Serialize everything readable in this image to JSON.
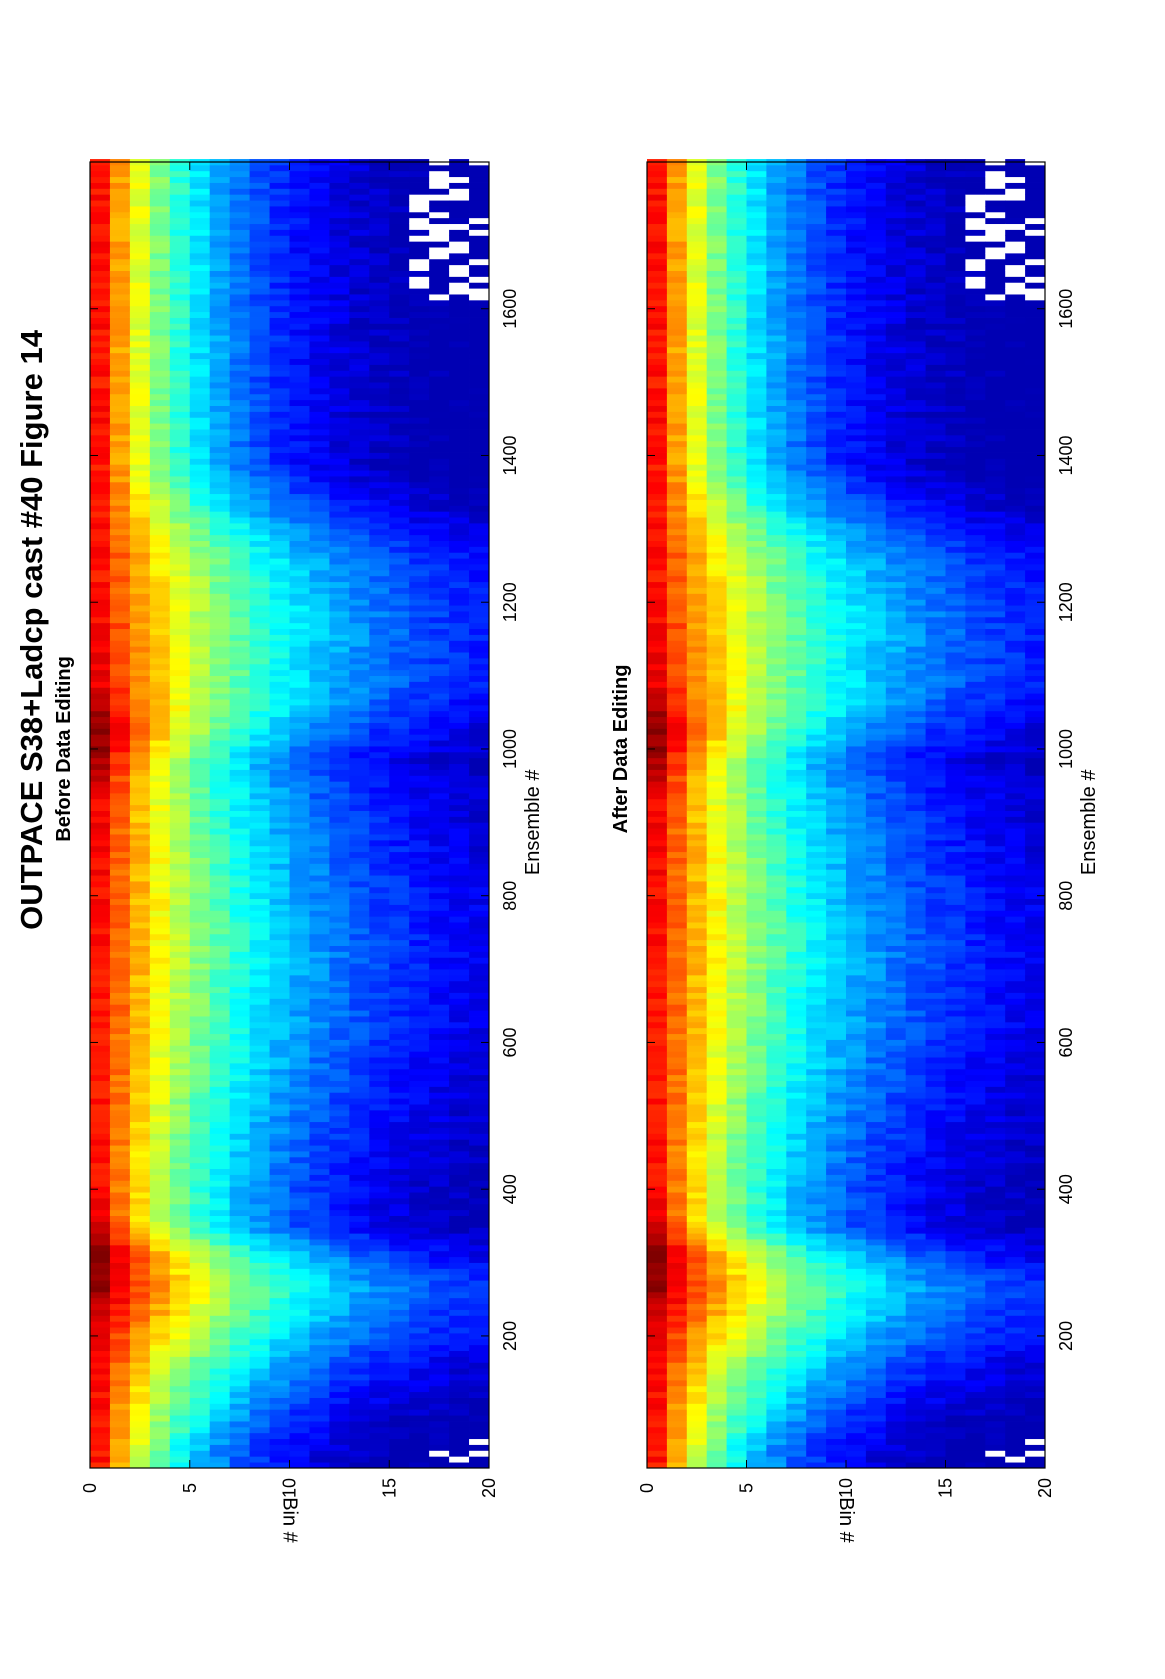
{
  "figure": {
    "title": "OUTPACE S38+Ladcp cast #40  Figure 14",
    "orientation": "rotated 90° counter-clockwise (landscape page shown in portrait)"
  },
  "chart_data": [
    {
      "type": "heatmap",
      "title": "Before Data Editing",
      "xlabel": "Ensemble #",
      "ylabel": "Bin #",
      "xlim": [
        20,
        1800
      ],
      "ylim": [
        0,
        20
      ],
      "y_reversed": true,
      "xticks": [
        200,
        400,
        600,
        800,
        1000,
        1200,
        1400,
        1600
      ],
      "yticks": [
        0,
        5,
        10,
        15,
        20
      ],
      "colormap": "jet",
      "x_grid": [
        40,
        100,
        150,
        200,
        260,
        300,
        350,
        420,
        520,
        620,
        720,
        820,
        920,
        980,
        1020,
        1080,
        1150,
        1200,
        1260,
        1330,
        1380,
        1450,
        1520,
        1580,
        1620,
        1700,
        1780
      ],
      "bin_grid": [
        1,
        2,
        3,
        4,
        5,
        6,
        7,
        8,
        9,
        10,
        11,
        12,
        13,
        14,
        15,
        16,
        17,
        18,
        19,
        20
      ],
      "intensity_profile": {
        "description": "relative intensity (0 = dark blue, 1 = dark red) at each x_grid point for bin 1; deeper bins attenuate",
        "surface": [
          0.86,
          0.86,
          0.86,
          0.9,
          0.97,
          1.0,
          0.9,
          0.86,
          0.86,
          0.86,
          0.86,
          0.87,
          0.88,
          0.95,
          1.0,
          0.9,
          0.88,
          0.86,
          0.86,
          0.86,
          0.86,
          0.86,
          0.86,
          0.86,
          0.86,
          0.86,
          0.86
        ],
        "decay_scale_bins": [
          5,
          6.5,
          8,
          10,
          11,
          9,
          6.5,
          7,
          8,
          9,
          9.5,
          9,
          8,
          7,
          8,
          10.5,
          11,
          11,
          10,
          7,
          5.5,
          5.5,
          5.5,
          5.5,
          5.5,
          5.5,
          5.5
        ]
      },
      "missing_data_regions": [
        {
          "x": [
            20,
            60
          ],
          "bins": [
            18,
            20
          ]
        },
        {
          "x": [
            1600,
            1800
          ],
          "bins": [
            17,
            20
          ]
        }
      ]
    },
    {
      "type": "heatmap",
      "title": "After Data Editing",
      "xlabel": "Ensemble #",
      "ylabel": "Bin #",
      "xlim": [
        20,
        1800
      ],
      "ylim": [
        0,
        20
      ],
      "y_reversed": true,
      "xticks": [
        200,
        400,
        600,
        800,
        1000,
        1200,
        1400,
        1600
      ],
      "yticks": [
        0,
        5,
        10,
        15,
        20
      ],
      "colormap": "jet",
      "x_grid": [
        40,
        100,
        150,
        200,
        260,
        300,
        350,
        420,
        520,
        620,
        720,
        820,
        920,
        980,
        1020,
        1080,
        1150,
        1200,
        1260,
        1330,
        1380,
        1450,
        1520,
        1580,
        1620,
        1700,
        1780
      ],
      "bin_grid": [
        1,
        2,
        3,
        4,
        5,
        6,
        7,
        8,
        9,
        10,
        11,
        12,
        13,
        14,
        15,
        16,
        17,
        18,
        19,
        20
      ],
      "intensity_profile": {
        "description": "relative intensity (0 = dark blue, 1 = dark red) at each x_grid point for bin 1; deeper bins attenuate",
        "surface": [
          0.86,
          0.86,
          0.86,
          0.9,
          0.97,
          1.0,
          0.9,
          0.86,
          0.86,
          0.86,
          0.86,
          0.87,
          0.88,
          0.95,
          1.0,
          0.9,
          0.88,
          0.86,
          0.86,
          0.86,
          0.86,
          0.86,
          0.86,
          0.86,
          0.86,
          0.86,
          0.86
        ],
        "decay_scale_bins": [
          5,
          6.5,
          8,
          10,
          11,
          9,
          6.5,
          7,
          8,
          9,
          9.5,
          9,
          8,
          7,
          8,
          10.5,
          11,
          11,
          10,
          7,
          5.5,
          5.5,
          5.5,
          5.5,
          5.5,
          5.5,
          5.5
        ]
      },
      "missing_data_regions": [
        {
          "x": [
            20,
            60
          ],
          "bins": [
            18,
            20
          ]
        },
        {
          "x": [
            1600,
            1800
          ],
          "bins": [
            17,
            20
          ]
        }
      ]
    }
  ]
}
